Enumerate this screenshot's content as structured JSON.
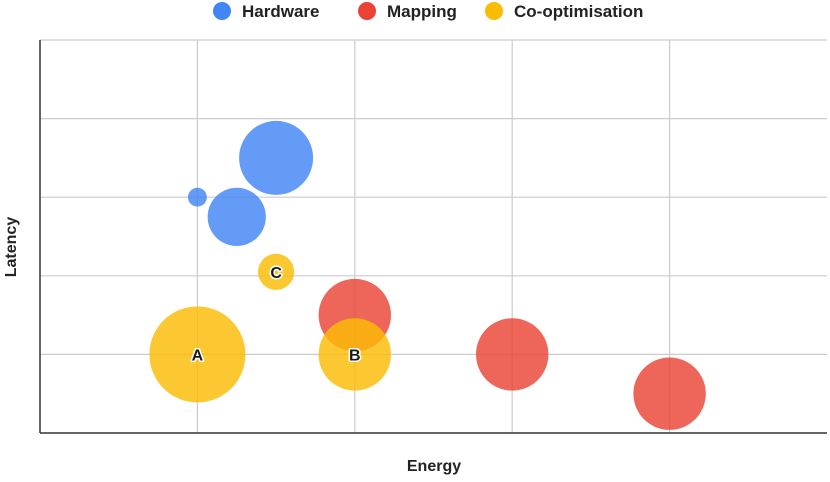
{
  "chart_data": {
    "type": "bubble",
    "title": "",
    "xlabel": "Energy",
    "ylabel": "Latency",
    "xlim": [
      0,
      5
    ],
    "ylim": [
      0,
      5
    ],
    "grid": true,
    "legend_position": "top-center",
    "series": [
      {
        "name": "Hardware",
        "color": "#4285F4",
        "points": [
          {
            "x": 1.0,
            "y": 3.0,
            "size": 0.12,
            "label": ""
          },
          {
            "x": 1.25,
            "y": 2.75,
            "size": 0.37,
            "label": ""
          },
          {
            "x": 1.5,
            "y": 3.5,
            "size": 0.47,
            "label": ""
          }
        ]
      },
      {
        "name": "Mapping",
        "color": "#EA4335",
        "points": [
          {
            "x": 2.0,
            "y": 1.5,
            "size": 0.46,
            "label": ""
          },
          {
            "x": 3.0,
            "y": 1.0,
            "size": 0.46,
            "label": ""
          },
          {
            "x": 4.0,
            "y": 0.5,
            "size": 0.46,
            "label": ""
          }
        ]
      },
      {
        "name": "Co-optimisation",
        "color": "#FBBC04",
        "points": [
          {
            "x": 1.0,
            "y": 1.0,
            "size": 0.61,
            "label": "A"
          },
          {
            "x": 2.0,
            "y": 1.0,
            "size": 0.46,
            "label": "B"
          },
          {
            "x": 1.5,
            "y": 2.05,
            "size": 0.23,
            "label": "C"
          }
        ]
      }
    ]
  }
}
